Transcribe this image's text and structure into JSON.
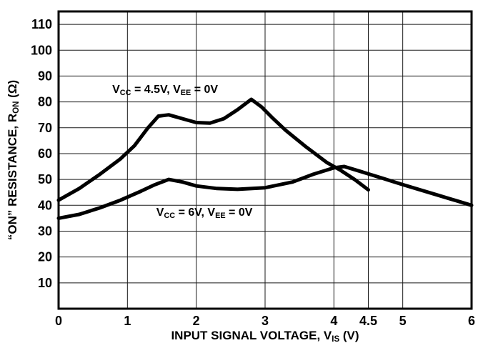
{
  "chart_data": {
    "type": "line",
    "title": "",
    "xlabel": "INPUT SIGNAL VOLTAGE, VIS (V)",
    "xlabel_parts": [
      {
        "t": "INPUT SIGNAL VOLTAGE, V"
      },
      {
        "t": "IS",
        "sub": true
      },
      {
        "t": " (V)"
      }
    ],
    "ylabel": "“ON” RESISTANCE, RON (Ω)",
    "ylabel_parts": [
      {
        "t": "“ON” RESISTANCE, R"
      },
      {
        "t": "ON",
        "sub": true
      },
      {
        "t": " (Ω)"
      }
    ],
    "xlim": [
      0,
      6
    ],
    "ylim": [
      0,
      115
    ],
    "grid": true,
    "legend_position": "none",
    "line_color": "#000000",
    "x_ticks": [
      {
        "v": 0,
        "label": "0"
      },
      {
        "v": 1,
        "label": "1"
      },
      {
        "v": 2,
        "label": "2"
      },
      {
        "v": 3,
        "label": "3"
      },
      {
        "v": 4,
        "label": "4"
      },
      {
        "v": 4.5,
        "label": "4.5"
      },
      {
        "v": 5,
        "label": "5"
      },
      {
        "v": 6,
        "label": "6"
      }
    ],
    "y_ticks": [
      {
        "v": 10,
        "label": "10"
      },
      {
        "v": 20,
        "label": "20"
      },
      {
        "v": 30,
        "label": "30"
      },
      {
        "v": 40,
        "label": "40"
      },
      {
        "v": 50,
        "label": "50"
      },
      {
        "v": 60,
        "label": "60"
      },
      {
        "v": 70,
        "label": "70"
      },
      {
        "v": 80,
        "label": "80"
      },
      {
        "v": 90,
        "label": "90"
      },
      {
        "v": 100,
        "label": "100"
      },
      {
        "v": 110,
        "label": "110"
      }
    ],
    "series": [
      {
        "name": "VCC = 4.5V, VEE = 0V",
        "x": [
          0,
          0.3,
          0.6,
          0.9,
          1.1,
          1.3,
          1.45,
          1.6,
          1.8,
          2.0,
          2.2,
          2.4,
          2.6,
          2.8,
          2.95,
          3.1,
          3.3,
          3.6,
          3.9,
          4.1,
          4.3,
          4.5
        ],
        "y": [
          42,
          46.5,
          52,
          58,
          63,
          70,
          74.5,
          75,
          73.5,
          72,
          71.8,
          73.5,
          77,
          81,
          78,
          74,
          69,
          62.5,
          56.5,
          53.5,
          50,
          46
        ]
      },
      {
        "name": "VCC = 6V, VEE = 0V",
        "x": [
          0,
          0.3,
          0.6,
          0.9,
          1.2,
          1.4,
          1.6,
          1.8,
          2.0,
          2.3,
          2.6,
          3.0,
          3.4,
          3.7,
          4.0,
          4.15,
          4.4,
          4.7,
          5.0,
          5.5,
          6.0
        ],
        "y": [
          35,
          36.5,
          39,
          42,
          45.5,
          48,
          50,
          49,
          47.5,
          46.5,
          46.2,
          46.8,
          49,
          52,
          54.5,
          55,
          53,
          50.5,
          48,
          44,
          40
        ]
      }
    ],
    "annotations": [
      {
        "text": "VCC = 4.5V, VEE = 0V",
        "x": 0.78,
        "y": 87,
        "parts": [
          {
            "t": "V"
          },
          {
            "t": "CC",
            "sub": true
          },
          {
            "t": " = 4.5V, V"
          },
          {
            "t": "EE",
            "sub": true
          },
          {
            "t": " = 0V"
          }
        ]
      },
      {
        "text": "VCC = 6V, VEE = 0V",
        "x": 1.42,
        "y": 39.4,
        "parts": [
          {
            "t": "V"
          },
          {
            "t": "CC",
            "sub": true
          },
          {
            "t": " = 6V, V"
          },
          {
            "t": "EE",
            "sub": true
          },
          {
            "t": " = 0V"
          }
        ]
      }
    ]
  }
}
